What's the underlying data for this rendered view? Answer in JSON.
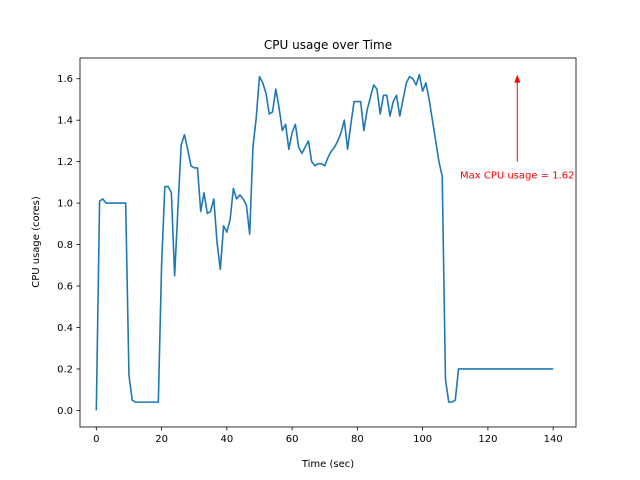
{
  "chart_data": {
    "type": "line",
    "title": "CPU usage over Time",
    "xlabel": "Time (sec)",
    "ylabel": "CPU usage (cores)",
    "xlim": [
      -5,
      147
    ],
    "ylim": [
      -0.08,
      1.7
    ],
    "xticks": [
      0,
      20,
      40,
      60,
      80,
      100,
      120,
      140
    ],
    "yticks": [
      0.0,
      0.2,
      0.4,
      0.6,
      0.8,
      1.0,
      1.2,
      1.4,
      1.6
    ],
    "grid": false,
    "series": [
      {
        "color": "#1f77b4",
        "x": [
          0,
          1,
          2,
          3,
          4,
          5,
          6,
          7,
          8,
          9,
          10,
          11,
          12,
          13,
          14,
          15,
          16,
          17,
          18,
          19,
          20,
          21,
          22,
          23,
          24,
          25,
          26,
          27,
          28,
          29,
          30,
          31,
          32,
          33,
          34,
          35,
          36,
          37,
          38,
          39,
          40,
          41,
          42,
          43,
          44,
          45,
          46,
          47,
          48,
          49,
          50,
          51,
          52,
          53,
          54,
          55,
          56,
          57,
          58,
          59,
          60,
          61,
          62,
          63,
          64,
          65,
          66,
          67,
          68,
          69,
          70,
          71,
          72,
          73,
          74,
          75,
          76,
          77,
          78,
          79,
          80,
          81,
          82,
          83,
          84,
          85,
          86,
          87,
          88,
          89,
          90,
          91,
          92,
          93,
          94,
          95,
          96,
          97,
          98,
          99,
          100,
          101,
          102,
          103,
          104,
          105,
          106,
          107,
          108,
          109,
          110,
          111,
          112,
          113,
          114,
          115,
          116,
          117,
          118,
          119,
          120,
          121,
          122,
          123,
          124,
          125,
          126,
          127,
          128,
          129,
          130,
          131,
          132,
          133,
          134,
          135,
          136,
          137,
          138,
          139,
          140
        ],
        "y": [
          0.0,
          1.01,
          1.02,
          1.0,
          1.0,
          1.0,
          1.0,
          1.0,
          1.0,
          1.0,
          0.17,
          0.05,
          0.04,
          0.04,
          0.04,
          0.04,
          0.04,
          0.04,
          0.04,
          0.04,
          0.7,
          1.08,
          1.08,
          1.05,
          0.65,
          0.97,
          1.28,
          1.33,
          1.26,
          1.18,
          1.17,
          1.17,
          0.96,
          1.05,
          0.95,
          0.96,
          1.02,
          0.81,
          0.68,
          0.89,
          0.86,
          0.92,
          1.07,
          1.02,
          1.04,
          1.02,
          0.99,
          0.85,
          1.27,
          1.41,
          1.61,
          1.58,
          1.53,
          1.43,
          1.44,
          1.55,
          1.46,
          1.35,
          1.38,
          1.26,
          1.34,
          1.38,
          1.27,
          1.24,
          1.27,
          1.3,
          1.2,
          1.18,
          1.19,
          1.19,
          1.18,
          1.22,
          1.25,
          1.27,
          1.3,
          1.34,
          1.4,
          1.26,
          1.38,
          1.49,
          1.49,
          1.49,
          1.35,
          1.45,
          1.51,
          1.57,
          1.55,
          1.43,
          1.52,
          1.52,
          1.42,
          1.49,
          1.52,
          1.42,
          1.5,
          1.58,
          1.61,
          1.6,
          1.57,
          1.62,
          1.54,
          1.58,
          1.5,
          1.4,
          1.3,
          1.2,
          1.13,
          0.15,
          0.04,
          0.04,
          0.05,
          0.2,
          0.2,
          0.2,
          0.2,
          0.2,
          0.2,
          0.2,
          0.2,
          0.2,
          0.2,
          0.2,
          0.2,
          0.2,
          0.2,
          0.2,
          0.2,
          0.2,
          0.2,
          0.2,
          0.2,
          0.2,
          0.2,
          0.2,
          0.2,
          0.2,
          0.2,
          0.2,
          0.2,
          0.2,
          0.2
        ]
      }
    ],
    "annotation": {
      "text": "Max CPU usage = 1.62",
      "color": "#ff0000",
      "point": [
        129,
        1.62
      ],
      "text_anchor": [
        129,
        1.2
      ]
    }
  }
}
